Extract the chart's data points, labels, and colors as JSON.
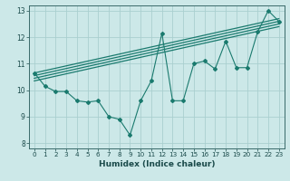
{
  "title": "",
  "xlabel": "Humidex (Indice chaleur)",
  "ylabel": "",
  "background_color": "#cce8e8",
  "line_color": "#1a7a6e",
  "grid_color": "#aacfcf",
  "x_scatter": [
    0,
    1,
    2,
    3,
    4,
    5,
    6,
    7,
    8,
    9,
    10,
    11,
    12,
    13,
    14,
    15,
    16,
    17,
    18,
    19,
    20,
    21,
    22,
    23
  ],
  "y_scatter": [
    10.65,
    10.15,
    9.95,
    9.95,
    9.6,
    9.55,
    9.6,
    9.0,
    8.9,
    8.3,
    9.6,
    10.35,
    12.15,
    9.6,
    9.6,
    11.0,
    11.1,
    10.8,
    11.85,
    10.85,
    10.85,
    12.2,
    13.0,
    12.6
  ],
  "ylim": [
    7.8,
    13.2
  ],
  "xlim": [
    -0.5,
    23.5
  ],
  "yticks": [
    8,
    9,
    10,
    11,
    12,
    13
  ],
  "xticks": [
    0,
    1,
    2,
    3,
    4,
    5,
    6,
    7,
    8,
    9,
    10,
    11,
    12,
    13,
    14,
    15,
    16,
    17,
    18,
    19,
    20,
    21,
    22,
    23
  ],
  "regression_lines": [
    {
      "x0": 0,
      "y0": 10.65,
      "x1": 23,
      "y1": 12.7
    },
    {
      "x0": 0,
      "y0": 10.55,
      "x1": 23,
      "y1": 12.6
    },
    {
      "x0": 0,
      "y0": 10.45,
      "x1": 23,
      "y1": 12.5
    },
    {
      "x0": 0,
      "y0": 10.35,
      "x1": 23,
      "y1": 12.4
    }
  ]
}
